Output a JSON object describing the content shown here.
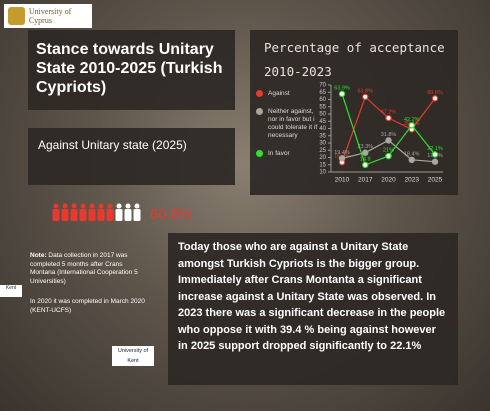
{
  "logo": "University of Cyprus",
  "title": "Stance towards Unitary State 2010-2025 (Turkish Cypriots)",
  "subtitle": "Against Unitary state (2025)",
  "pictogram": {
    "value": 60.8,
    "value_label": "60.8%"
  },
  "note": {
    "lead": "Note:",
    "text": "Data collection in 2017 was completed 5 months after Crans Montana (International Cooperation 5 Universities)",
    "second": "In 2020 it was completed in March 2020 (KENT-UCFS)"
  },
  "summary": "Today those who are against a Unitary State amongst Turkish Cypriots is the bigger group. Immediately after Crans Montanta a significant increase against a Unitary State was observed. In 2023 there was a significant decrease in the people who oppose it with 39.4 % being against however in 2025 support dropped significantly to 22.1%",
  "side_logos": [
    "University of Kent",
    "Kent"
  ],
  "chart_data": {
    "type": "line",
    "title": "Percentage of acceptance 2010-2023",
    "categories": [
      "2010",
      "2017",
      "2020",
      "2023",
      "2025"
    ],
    "series": [
      {
        "name": "Against",
        "color": "#e8392f",
        "values": [
          16.7,
          61.8,
          47.2,
          39.4,
          60.8
        ],
        "value_labels": [
          "16.7%",
          "61.8%",
          "47.2%",
          "39.4%",
          "60.8%"
        ]
      },
      {
        "name": "Neither against, nor in favor but i could tolerate it if necessary",
        "color": "#a5a89a",
        "values": [
          19.4,
          23.3,
          31.8,
          18.4,
          17.1
        ],
        "value_labels": [
          "19.4%",
          "23.3%",
          "31.8%",
          "18.4%",
          "17.1%"
        ]
      },
      {
        "name": "In favor",
        "color": "#2fe02f",
        "values": [
          63.9,
          14.9,
          21,
          42.2,
          22.1
        ],
        "value_labels": [
          "63.9%",
          "14.9",
          "21%",
          "42.2%",
          "22.1%"
        ]
      }
    ],
    "ylim": [
      10,
      70
    ],
    "yticks": [
      10,
      15,
      20,
      25,
      30,
      35,
      40,
      45,
      50,
      55,
      60,
      65,
      70
    ]
  }
}
